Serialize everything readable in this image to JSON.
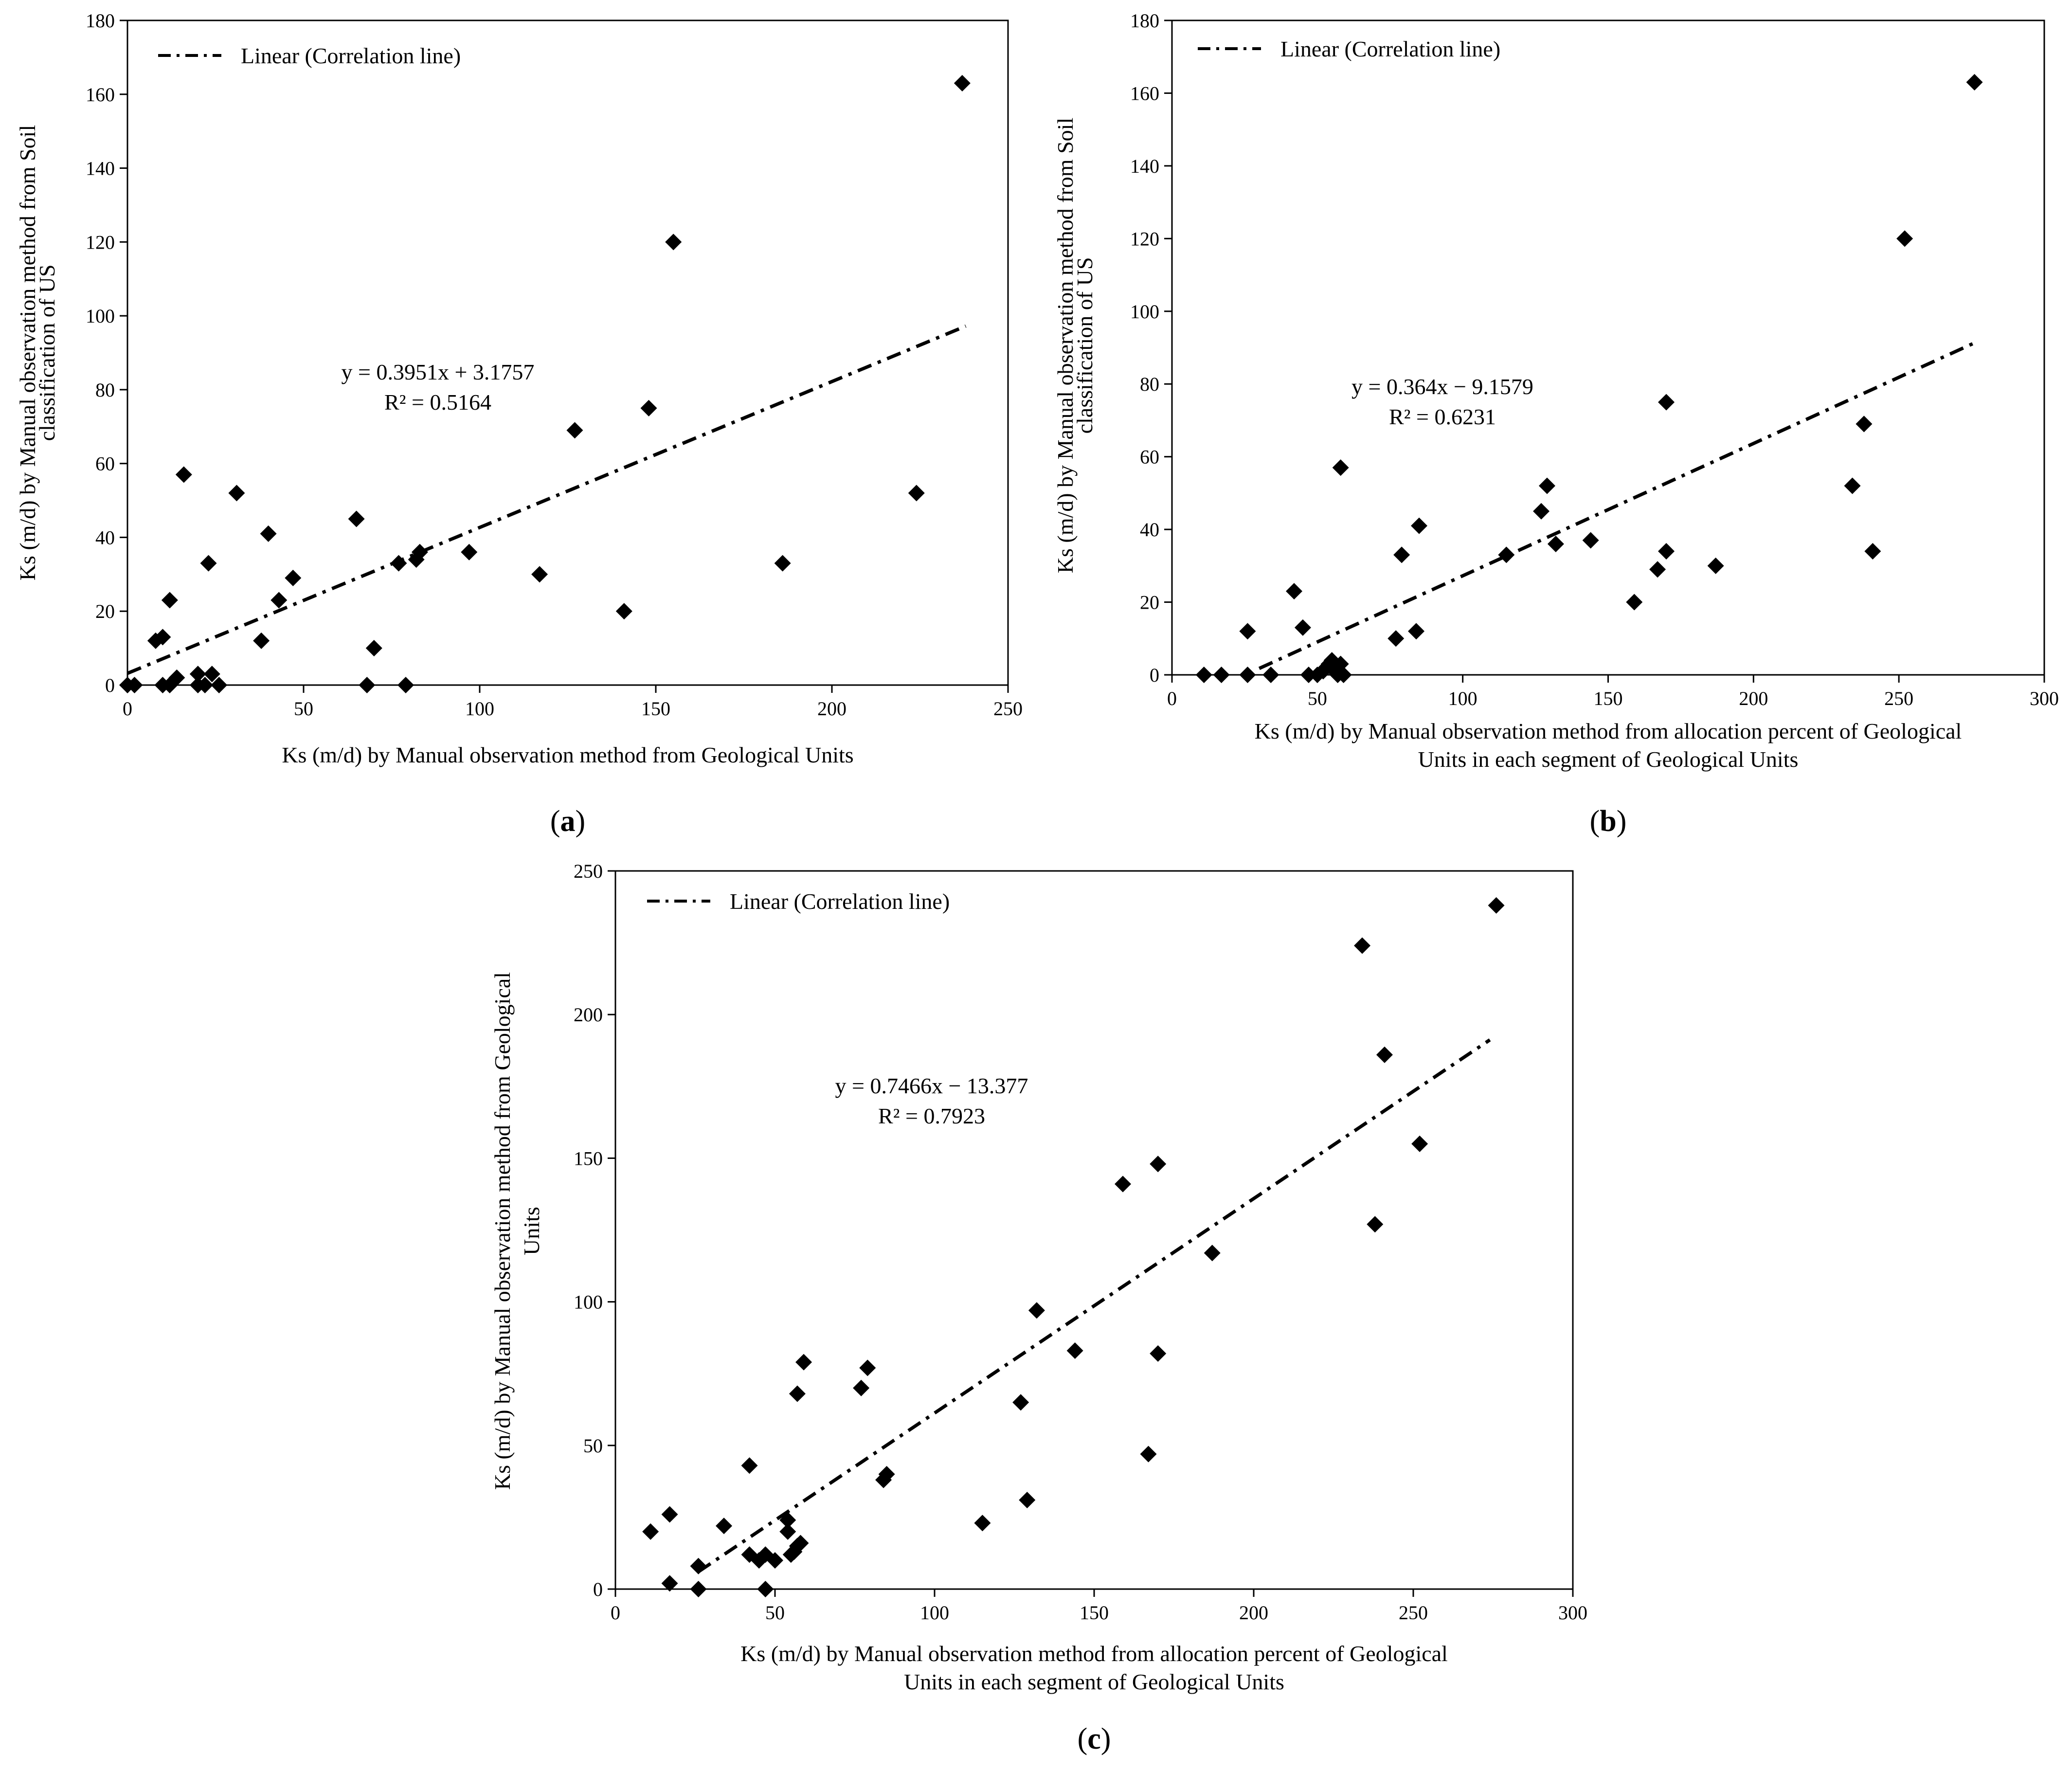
{
  "chart_data": [
    {
      "id": "a",
      "type": "scatter",
      "panel_label": "a",
      "xlabel_lines": [
        "Ks (m/d) by Manual observation method from Geological Units"
      ],
      "ylabel_lines": [
        "Ks (m/d) by Manual observation method from Soil",
        "classification of US"
      ],
      "xlim": [
        0,
        250
      ],
      "ylim": [
        0,
        180
      ],
      "xticks": [
        0,
        50,
        100,
        150,
        200,
        250
      ],
      "yticks": [
        0,
        20,
        40,
        60,
        80,
        100,
        120,
        140,
        160,
        180
      ],
      "legend": "Linear (Correlation line)",
      "equation": "y = 0.3951x + 3.1757",
      "r2": "R² = 0.5164",
      "trendline": {
        "slope": 0.3951,
        "intercept": 3.1757,
        "x_range": [
          0,
          238
        ]
      },
      "points": [
        [
          0,
          0
        ],
        [
          2,
          0
        ],
        [
          8,
          12
        ],
        [
          10,
          13
        ],
        [
          10,
          0
        ],
        [
          12,
          0
        ],
        [
          12,
          23
        ],
        [
          14,
          2
        ],
        [
          16,
          57
        ],
        [
          20,
          3
        ],
        [
          20,
          0
        ],
        [
          22,
          0
        ],
        [
          23,
          33
        ],
        [
          24,
          3
        ],
        [
          26,
          0
        ],
        [
          31,
          52
        ],
        [
          38,
          12
        ],
        [
          40,
          41
        ],
        [
          43,
          23
        ],
        [
          47,
          29
        ],
        [
          65,
          45
        ],
        [
          68,
          0
        ],
        [
          70,
          10
        ],
        [
          77,
          33
        ],
        [
          79,
          0
        ],
        [
          82,
          34
        ],
        [
          83,
          36
        ],
        [
          97,
          36
        ],
        [
          117,
          30
        ],
        [
          127,
          69
        ],
        [
          141,
          20
        ],
        [
          148,
          75
        ],
        [
          155,
          120
        ],
        [
          186,
          33
        ],
        [
          224,
          52
        ],
        [
          237,
          163
        ]
      ]
    },
    {
      "id": "b",
      "type": "scatter",
      "panel_label": "b",
      "xlabel_lines": [
        "Ks (m/d) by Manual observation method from allocation percent of Geological",
        "Units in each segment of Geological Units"
      ],
      "ylabel_lines": [
        "Ks (m/d) by Manual observation method from Soil",
        "classification of US"
      ],
      "xlim": [
        0,
        300
      ],
      "ylim": [
        0,
        180
      ],
      "xticks": [
        0,
        50,
        100,
        150,
        200,
        250,
        300
      ],
      "yticks": [
        0,
        20,
        40,
        60,
        80,
        100,
        120,
        140,
        160,
        180
      ],
      "legend": "Linear (Correlation line)",
      "equation": "y = 0.364x − 9.1579",
      "r2": "R² = 0.6231",
      "trendline": {
        "slope": 0.364,
        "intercept": -9.1579,
        "x_range": [
          30,
          276
        ]
      },
      "points": [
        [
          11,
          0
        ],
        [
          17,
          0
        ],
        [
          26,
          0
        ],
        [
          26,
          12
        ],
        [
          34,
          0
        ],
        [
          42,
          23
        ],
        [
          45,
          13
        ],
        [
          47,
          0
        ],
        [
          50,
          0
        ],
        [
          52,
          1
        ],
        [
          53,
          2
        ],
        [
          54,
          3
        ],
        [
          55,
          4
        ],
        [
          56,
          1
        ],
        [
          57,
          0
        ],
        [
          58,
          3
        ],
        [
          58,
          57
        ],
        [
          59,
          0
        ],
        [
          77,
          10
        ],
        [
          79,
          33
        ],
        [
          84,
          12
        ],
        [
          85,
          41
        ],
        [
          115,
          33
        ],
        [
          127,
          45
        ],
        [
          129,
          52
        ],
        [
          132,
          36
        ],
        [
          144,
          37
        ],
        [
          159,
          20
        ],
        [
          167,
          29
        ],
        [
          170,
          34
        ],
        [
          170,
          75
        ],
        [
          187,
          30
        ],
        [
          234,
          52
        ],
        [
          238,
          69
        ],
        [
          241,
          34
        ],
        [
          252,
          120
        ],
        [
          276,
          163
        ]
      ]
    },
    {
      "id": "c",
      "type": "scatter",
      "panel_label": "c",
      "xlabel_lines": [
        "Ks (m/d) by Manual observation method from allocation percent of Geological",
        "Units in each segment of Geological Units"
      ],
      "ylabel_lines": [
        "Ks (m/d) by Manual observation method from Geological",
        "Units"
      ],
      "xlim": [
        0,
        300
      ],
      "ylim": [
        0,
        250
      ],
      "xticks": [
        0,
        50,
        100,
        150,
        200,
        250,
        300
      ],
      "yticks": [
        0,
        50,
        100,
        150,
        200,
        250
      ],
      "legend": "Linear (Correlation line)",
      "equation": "y = 0.7466x − 13.377",
      "r2": "R² = 0.7923",
      "trendline": {
        "slope": 0.7466,
        "intercept": -13.377,
        "x_range": [
          26,
          274
        ]
      },
      "points": [
        [
          11,
          20
        ],
        [
          17,
          2
        ],
        [
          17,
          26
        ],
        [
          26,
          0
        ],
        [
          26,
          8
        ],
        [
          34,
          22
        ],
        [
          42,
          12
        ],
        [
          42,
          43
        ],
        [
          45,
          10
        ],
        [
          47,
          0
        ],
        [
          47,
          12
        ],
        [
          50,
          10
        ],
        [
          54,
          20
        ],
        [
          54,
          24
        ],
        [
          55,
          12
        ],
        [
          56,
          13
        ],
        [
          57,
          15
        ],
        [
          57,
          68
        ],
        [
          58,
          16
        ],
        [
          59,
          79
        ],
        [
          77,
          70
        ],
        [
          79,
          77
        ],
        [
          84,
          38
        ],
        [
          85,
          40
        ],
        [
          115,
          23
        ],
        [
          127,
          65
        ],
        [
          129,
          31
        ],
        [
          132,
          97
        ],
        [
          144,
          83
        ],
        [
          159,
          141
        ],
        [
          167,
          47
        ],
        [
          170,
          82
        ],
        [
          170,
          148
        ],
        [
          187,
          117
        ],
        [
          234,
          224
        ],
        [
          238,
          127
        ],
        [
          241,
          186
        ],
        [
          252,
          155
        ],
        [
          276,
          238
        ]
      ]
    }
  ]
}
